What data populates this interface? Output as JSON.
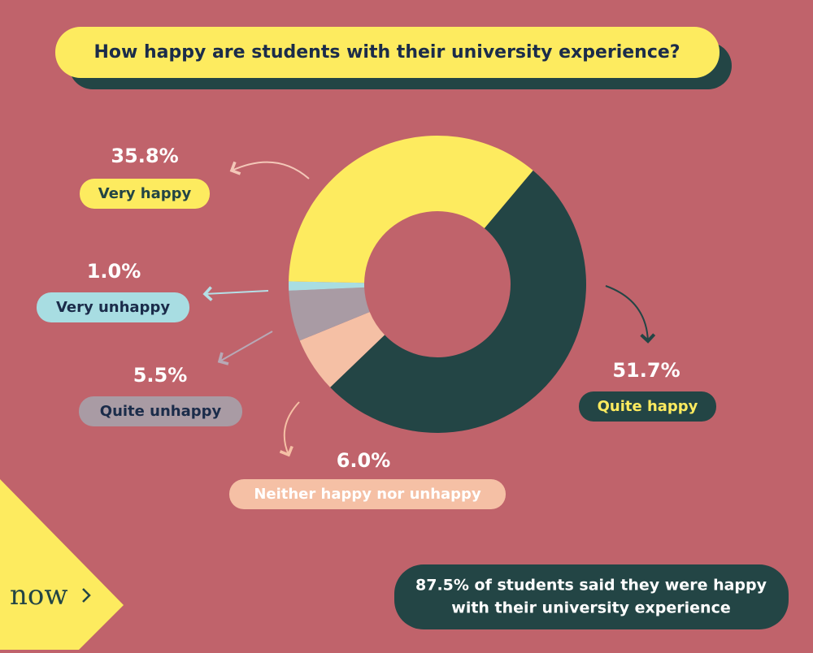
{
  "chart_data": {
    "type": "donut",
    "title": "How happy are students with their university experience?",
    "categories": [
      "Quite happy",
      "Neither happy nor unhappy",
      "Quite unhappy",
      "Very unhappy",
      "Very happy"
    ],
    "values": [
      51.7,
      6.0,
      5.5,
      1.0,
      35.8
    ],
    "value_labels": [
      "51.7%",
      "6.0%",
      "5.5%",
      "1.0%",
      "35.8%"
    ],
    "colors": [
      "#234545",
      "#f5c0a5",
      "#a99ba4",
      "#a8dde2",
      "#fdeb5f"
    ],
    "footnote": [
      "87.5% of students said they were happy",
      "with their university experience"
    ],
    "logo": "now"
  }
}
